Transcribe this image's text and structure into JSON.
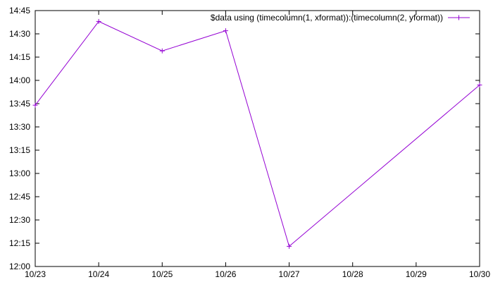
{
  "chart_data": {
    "type": "line",
    "title": "",
    "xlabel": "",
    "ylabel": "",
    "x_type": "date",
    "x_ticks": [
      "10/23",
      "10/24",
      "10/25",
      "10/26",
      "10/27",
      "10/28",
      "10/29",
      "10/30"
    ],
    "y_ticks": [
      "12:00",
      "12:15",
      "12:30",
      "12:45",
      "13:00",
      "13:15",
      "13:30",
      "13:45",
      "14:00",
      "14:15",
      "14:30",
      "14:45"
    ],
    "xlim": [
      "10/23",
      "10/30"
    ],
    "ylim": [
      "12:00",
      "14:45"
    ],
    "grid": false,
    "legend_position": "top-right",
    "series": [
      {
        "name": "$data using (timecolumn(1, xformat)):(timecolumn(2, yformat))",
        "color": "#9400d3",
        "marker": "plus",
        "x": [
          "10/23",
          "10/24",
          "10/25",
          "10/26",
          "10/27",
          "10/30"
        ],
        "y": [
          "13:44",
          "14:38",
          "14:19",
          "14:32",
          "12:13",
          "13:57"
        ]
      }
    ]
  }
}
